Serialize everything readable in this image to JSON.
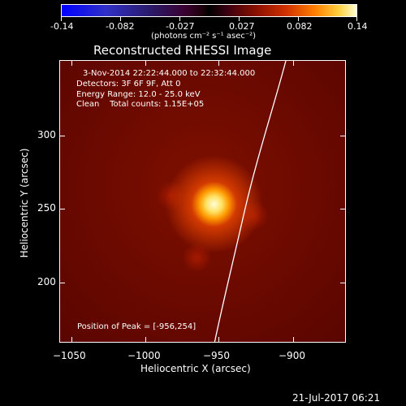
{
  "colorbar": {
    "tick_labels": [
      "-0.14",
      "-0.082",
      "-0.027",
      "0.027",
      "0.082",
      "0.14"
    ],
    "unit_label": "(photons cm⁻² s⁻¹ asec⁻²)"
  },
  "plot": {
    "title": "Reconstructed RHESSI Image",
    "info": {
      "time_range": "3-Nov-2014 22:22:44.000 to 22:32:44.000",
      "detectors": "Detectors: 3F 6F 9F, Att 0",
      "energy": "Energy Range: 12.0 - 25.0 keV",
      "clean": "Clean    Total counts: 1.15E+05"
    },
    "peak": "Position of Peak = [-956,254]",
    "xlabel": "Heliocentric X (arcsec)",
    "ylabel": "Heliocentric Y (arcsec)",
    "x_ticks": [
      "−1050",
      "−1000",
      "−950",
      "−900"
    ],
    "y_ticks": [
      "300",
      "250",
      "200"
    ]
  },
  "timestamp": "21-Jul-2017 06:21",
  "colors": {
    "background": "#000000",
    "limb_line": "#ffffff"
  }
}
